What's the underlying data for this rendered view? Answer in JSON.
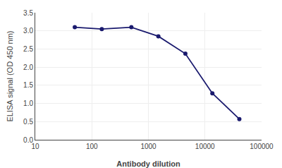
{
  "chart_data": {
    "type": "line",
    "x": [
      50,
      150,
      500,
      1500,
      4500,
      13500,
      40500
    ],
    "values": [
      3.1,
      3.05,
      3.1,
      2.85,
      2.37,
      1.28,
      0.57
    ],
    "color": "#1a1a6e",
    "marker": "circle",
    "xlabel": "Antibody dilution",
    "ylabel": "ELISA signal (OD 450 nm)",
    "log": "x",
    "xlim": [
      10,
      100000
    ],
    "xticks": [
      10,
      100,
      1000,
      10000,
      100000
    ],
    "ylim": [
      0.0,
      3.5
    ],
    "yticks": [
      {
        "value": 0.0,
        "label": "0.0"
      },
      0.5,
      {
        "value": 1.0,
        "label": "1.0"
      },
      1.5,
      {
        "value": 2.0,
        "label": "2.0"
      },
      2.5,
      {
        "value": 3.0,
        "label": "3.0"
      },
      3.5
    ],
    "grid": true
  }
}
